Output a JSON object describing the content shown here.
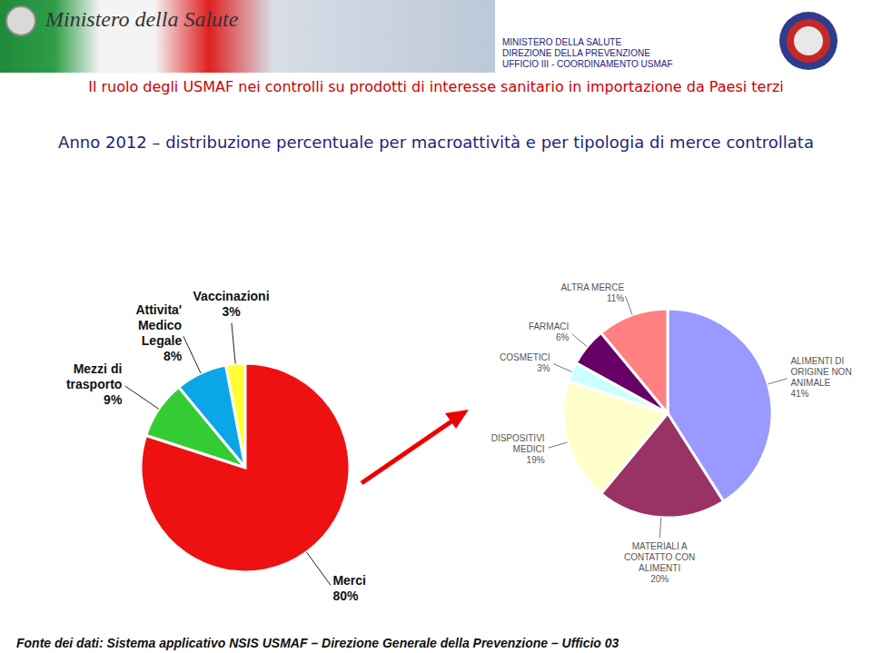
{
  "header": {
    "logo_text": "Ministero della Salute",
    "office": [
      "MINISTERO DELLA SALUTE",
      "DIREZIONE DELLA PREVENZIONE",
      "UFFICIO III - COORDINAMENTO USMAF"
    ],
    "heading": "Il ruolo degli USMAF nei controlli su prodotti di interesse sanitario in importazione da Paesi terzi"
  },
  "title": "Anno 2012 – distribuzione percentuale per macroattività e per tipologia di merce controllata",
  "chart_data": [
    {
      "type": "pie",
      "categories": [
        "Vaccinazioni",
        "Attivita' Medico Legale",
        "Mezzi di trasporto",
        "Merci"
      ],
      "values": [
        3,
        8,
        9,
        80
      ],
      "value_labels": [
        "3%",
        "8%",
        "9%",
        "80%"
      ],
      "colors": [
        "#ffff33",
        "#0aa6e8",
        "#33cc33",
        "#ee1111"
      ],
      "data_labels": true
    },
    {
      "type": "pie",
      "categories": [
        "ALIMENTI DI ORIGINE NON ANIMALE",
        "MATERIALI A CONTATTO CON ALIMENTI",
        "DISPOSITIVI MEDICI",
        "COSMETICI",
        "FARMACI",
        "ALTRA MERCE"
      ],
      "values": [
        41,
        20,
        19,
        3,
        6,
        11
      ],
      "value_labels": [
        "41%",
        "20%",
        "19%",
        "3%",
        "6%",
        "11%"
      ],
      "colors": [
        "#9999ff",
        "#993366",
        "#ffffcc",
        "#ccffff",
        "#660066",
        "#ff8080"
      ],
      "data_labels": true
    }
  ],
  "footer": "Fonte dei dati: Sistema applicativo NSIS USMAF – Direzione Generale della Prevenzione – Ufficio 03"
}
